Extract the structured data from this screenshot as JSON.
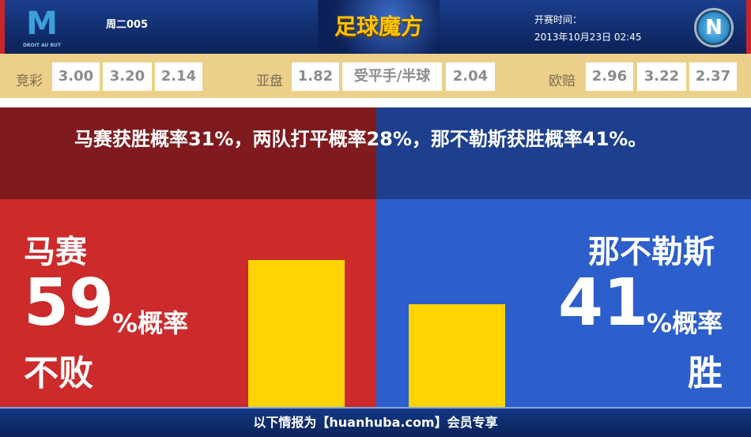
{
  "header": {
    "home_logo_text": "M",
    "home_logo_motto": "DROIT AU BUT",
    "match_code": "周二005",
    "brand": "足球魔方",
    "kickoff_label": "开赛时间：",
    "kickoff_time": "2013年10月23日 02:45",
    "away_logo_text": "N"
  },
  "odds": {
    "jingcai": {
      "label": "竞彩",
      "values": [
        "3.00",
        "3.20",
        "2.14"
      ]
    },
    "asian": {
      "label": "亚盘",
      "home": "1.82",
      "handicap": "受平手/半球",
      "away": "2.04"
    },
    "euro": {
      "label": "欧赔",
      "values": [
        "2.96",
        "3.22",
        "2.37"
      ]
    }
  },
  "summary": "马赛获胜概率31%，两队打平概率28%，那不勒斯获胜概率41%。",
  "home": {
    "team": "马赛",
    "percent": "59",
    "percent_suffix": "%概率",
    "outcome": "不败",
    "value": 59,
    "color": "#cc2a2b"
  },
  "away": {
    "team": "那不勒斯",
    "percent": "41",
    "percent_suffix": "%概率",
    "outcome": "胜",
    "value": 41,
    "color": "#2c5ecc"
  },
  "bar_color": "#ffd400",
  "footer": "以下情报为【huanhuba.com】会员专享"
}
